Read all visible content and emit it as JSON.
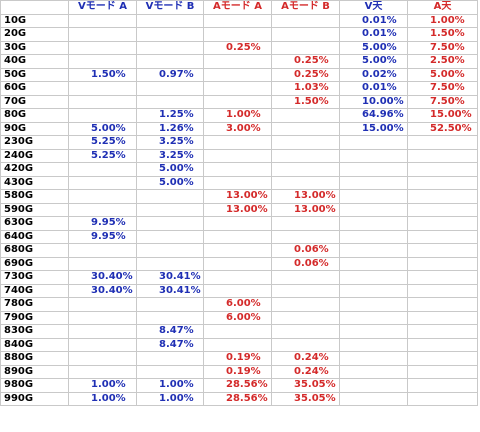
{
  "headers": [
    "",
    "Vモード A",
    "Vモード B",
    "Aモード A",
    "Aモード B",
    "V天",
    "A天"
  ],
  "header_colors": [
    "black",
    "blue",
    "blue",
    "red",
    "red",
    "blue",
    "red"
  ],
  "colors": {
    "blue": "#1f2fb4",
    "red": "#d42a2a",
    "black": "#000000",
    "grid": "#c9c9c9"
  },
  "rows": [
    [
      "10G",
      "",
      "",
      "",
      "",
      "0.01%",
      "1.00%"
    ],
    [
      "20G",
      "",
      "",
      "",
      "",
      "0.01%",
      "1.50%"
    ],
    [
      "30G",
      "",
      "",
      "0.25%",
      "",
      "5.00%",
      "7.50%"
    ],
    [
      "40G",
      "",
      "",
      "",
      "0.25%",
      "5.00%",
      "2.50%"
    ],
    [
      "50G",
      "1.50%",
      "0.97%",
      "",
      "0.25%",
      "0.02%",
      "5.00%"
    ],
    [
      "60G",
      "",
      "",
      "",
      "1.03%",
      "0.01%",
      "7.50%"
    ],
    [
      "70G",
      "",
      "",
      "",
      "1.50%",
      "10.00%",
      "7.50%"
    ],
    [
      "80G",
      "",
      "1.25%",
      "1.00%",
      "",
      "64.96%",
      "15.00%"
    ],
    [
      "90G",
      "5.00%",
      "1.26%",
      "3.00%",
      "",
      "15.00%",
      "52.50%"
    ],
    [
      "230G",
      "5.25%",
      "3.25%",
      "",
      "",
      "",
      ""
    ],
    [
      "240G",
      "5.25%",
      "3.25%",
      "",
      "",
      "",
      ""
    ],
    [
      "420G",
      "",
      "5.00%",
      "",
      "",
      "",
      ""
    ],
    [
      "430G",
      "",
      "5.00%",
      "",
      "",
      "",
      ""
    ],
    [
      "580G",
      "",
      "",
      "13.00%",
      "13.00%",
      "",
      ""
    ],
    [
      "590G",
      "",
      "",
      "13.00%",
      "13.00%",
      "",
      ""
    ],
    [
      "630G",
      "9.95%",
      "",
      "",
      "",
      "",
      ""
    ],
    [
      "640G",
      "9.95%",
      "",
      "",
      "",
      "",
      ""
    ],
    [
      "680G",
      "",
      "",
      "",
      "0.06%",
      "",
      ""
    ],
    [
      "690G",
      "",
      "",
      "",
      "0.06%",
      "",
      ""
    ],
    [
      "730G",
      "30.40%",
      "30.41%",
      "",
      "",
      "",
      ""
    ],
    [
      "740G",
      "30.40%",
      "30.41%",
      "",
      "",
      "",
      ""
    ],
    [
      "780G",
      "",
      "",
      "6.00%",
      "",
      "",
      ""
    ],
    [
      "790G",
      "",
      "",
      "6.00%",
      "",
      "",
      ""
    ],
    [
      "830G",
      "",
      "8.47%",
      "",
      "",
      "",
      ""
    ],
    [
      "840G",
      "",
      "8.47%",
      "",
      "",
      "",
      ""
    ],
    [
      "880G",
      "",
      "",
      "0.19%",
      "0.24%",
      "",
      ""
    ],
    [
      "890G",
      "",
      "",
      "0.19%",
      "0.24%",
      "",
      ""
    ],
    [
      "980G",
      "1.00%",
      "1.00%",
      "28.56%",
      "35.05%",
      "",
      ""
    ],
    [
      "990G",
      "1.00%",
      "1.00%",
      "28.56%",
      "35.05%",
      "",
      ""
    ]
  ]
}
